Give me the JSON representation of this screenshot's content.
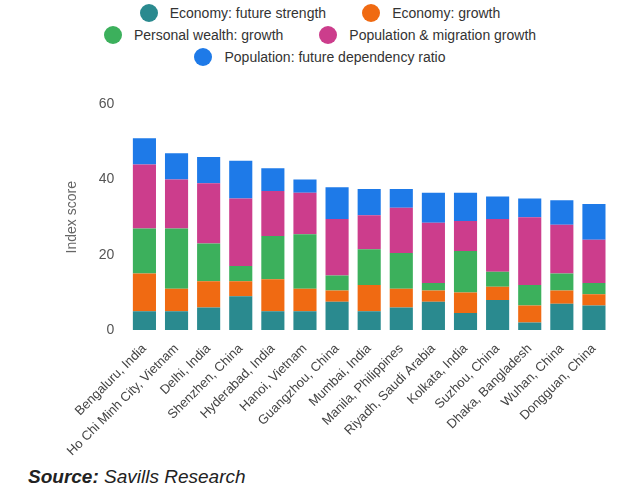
{
  "chart_data": {
    "type": "bar",
    "stacked": true,
    "orientation": "vertical",
    "legend": "top",
    "grid": false,
    "y_label": "Index score",
    "source": "Source: Savills Research",
    "categories": [
      "Bengaluru, India",
      "Ho Chi Minh City, Vietnam",
      "Delhi, India",
      "Shenzhen, China",
      "Hyderabad, India",
      "Hanoi, Vietnam",
      "Guangzhou, China",
      "Mumbai, India",
      "Manila, Philippines",
      "Riyadh, Saudi Arabia",
      "Kolkata, India",
      "Suzhou, China",
      "Dhaka, Bangladesh",
      "Wuhan, China",
      "Dongguan, China"
    ],
    "series": [
      {
        "name": "Economy: future strength",
        "color": "#2a8a8f",
        "values": [
          5,
          5,
          6,
          9,
          5,
          5,
          7.5,
          5,
          6,
          7.5,
          4.5,
          8,
          2,
          7,
          6.5
        ]
      },
      {
        "name": "Economy: growth",
        "color": "#f06a12",
        "values": [
          10,
          6,
          7,
          4,
          8.5,
          6,
          3,
          7,
          5,
          3,
          5.5,
          3.5,
          4.5,
          3.5,
          3
        ]
      },
      {
        "name": "Personal wealth: growth",
        "color": "#3cb05c",
        "values": [
          12,
          16,
          10,
          4,
          11.5,
          14.5,
          4,
          9.5,
          9.5,
          2,
          11,
          4,
          5.5,
          4.5,
          3
        ]
      },
      {
        "name": "Population & migration growth",
        "color": "#cc3d8c",
        "values": [
          17,
          13,
          16,
          18,
          12,
          11,
          15,
          9,
          12,
          16,
          8,
          14,
          18,
          13,
          11.5
        ]
      },
      {
        "name": "Population: future dependency ratio",
        "color": "#1e7ae8",
        "values": [
          7,
          7,
          7,
          10,
          6,
          3.5,
          8.5,
          7,
          5,
          8,
          7.5,
          6,
          5,
          6.5,
          9.5
        ]
      }
    ],
    "ylim": [
      0,
      60
    ],
    "yticks": [
      0,
      20,
      40,
      60
    ]
  }
}
